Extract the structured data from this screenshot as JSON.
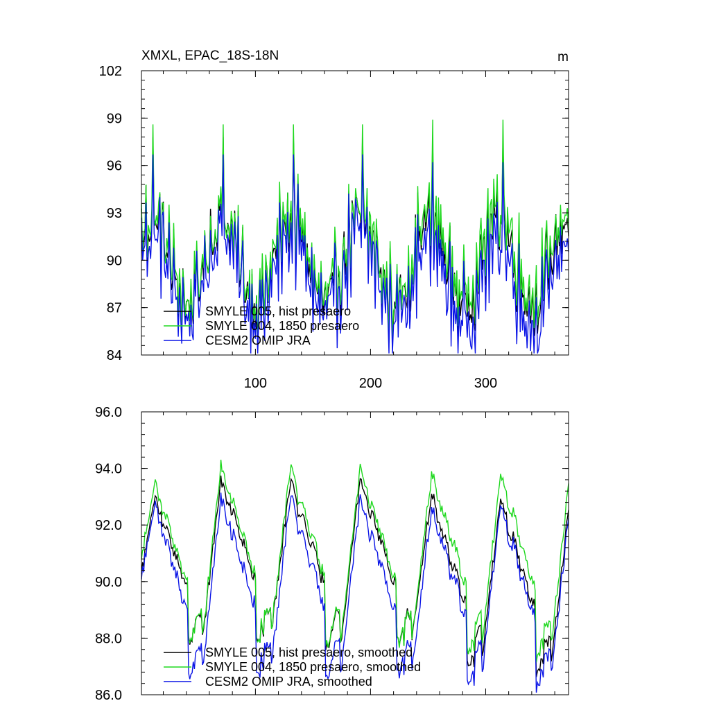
{
  "colors": {
    "hist": "#000000",
    "pre1850": "#1ed81e",
    "omip": "#0a14e6"
  },
  "chart_data": [
    {
      "type": "line",
      "title": "XMXL, EPAC_18S-18N",
      "units_label": "m",
      "xlabel": "",
      "ylabel": "",
      "xlim": [
        1,
        372
      ],
      "ylim": [
        84,
        102
      ],
      "x_ticks": [
        100,
        200,
        300
      ],
      "y_ticks": [
        84,
        87,
        90,
        93,
        96,
        99,
        102
      ],
      "y_tick_labels": [
        "84",
        "87",
        "90",
        "93",
        "96",
        "99",
        "102"
      ],
      "period_months": 60,
      "peak_months": [
        11,
        72,
        133,
        193,
        254,
        315
      ],
      "series": [
        {
          "name": "SMYLE 005, hist presaero",
          "color": "#000000",
          "base": 90.2,
          "amp": 2.6,
          "noise": 1.9,
          "peak": 7.6,
          "offset_late": 0.0
        },
        {
          "name": "SMYLE 004, 1850 presaero",
          "color": "#1ed81e",
          "base": 90.5,
          "amp": 2.6,
          "noise": 1.9,
          "peak": 8.1,
          "offset_late": 0.3
        },
        {
          "name": "CESM2 OMIP JRA",
          "color": "#0a14e6",
          "base": 89.4,
          "amp": 2.6,
          "noise": 2.1,
          "peak": 7.3,
          "offset_late": -0.5
        }
      ],
      "legend_position": "bottom-left"
    },
    {
      "type": "line",
      "title": "",
      "xlabel": "",
      "ylabel": "",
      "xlim": [
        1,
        372
      ],
      "ylim": [
        86,
        96
      ],
      "x_ticks": [
        100,
        200,
        300
      ],
      "y_ticks": [
        86,
        88,
        90,
        92,
        94,
        96
      ],
      "y_tick_labels": [
        "86.0",
        "88.0",
        "90.0",
        "92.0",
        "94.0",
        "96.0"
      ],
      "period_months": 60,
      "peak_months": [
        12,
        70,
        130,
        191,
        253,
        313
      ],
      "series": [
        {
          "name": "SMYLE 005, hist presaero, smoothed",
          "color": "#000000",
          "peaks": [
            93.0,
            93.6,
            93.5,
            93.5,
            93.3,
            93.4
          ],
          "troughs": [
            87.9,
            88.0,
            87.8,
            87.8,
            87.6,
            87.3
          ],
          "noise": 0.25,
          "late_drop": 0.5
        },
        {
          "name": "SMYLE 004, 1850 presaero, smoothed",
          "color": "#1ed81e",
          "peaks": [
            93.5,
            94.1,
            94.0,
            93.9,
            93.8,
            93.8
          ],
          "troughs": [
            87.9,
            88.0,
            87.9,
            87.8,
            87.6,
            87.4
          ],
          "noise": 0.25,
          "late_drop": 0.0
        },
        {
          "name": "CESM2 OMIP JRA, smoothed",
          "color": "#0a14e6",
          "peaks": [
            92.8,
            93.0,
            93.0,
            92.8,
            92.6,
            92.7
          ],
          "troughs": [
            86.7,
            86.8,
            86.8,
            86.7,
            86.5,
            86.3
          ],
          "noise": 0.3,
          "late_drop": 0.0
        }
      ],
      "legend_position": "bottom-left"
    }
  ]
}
